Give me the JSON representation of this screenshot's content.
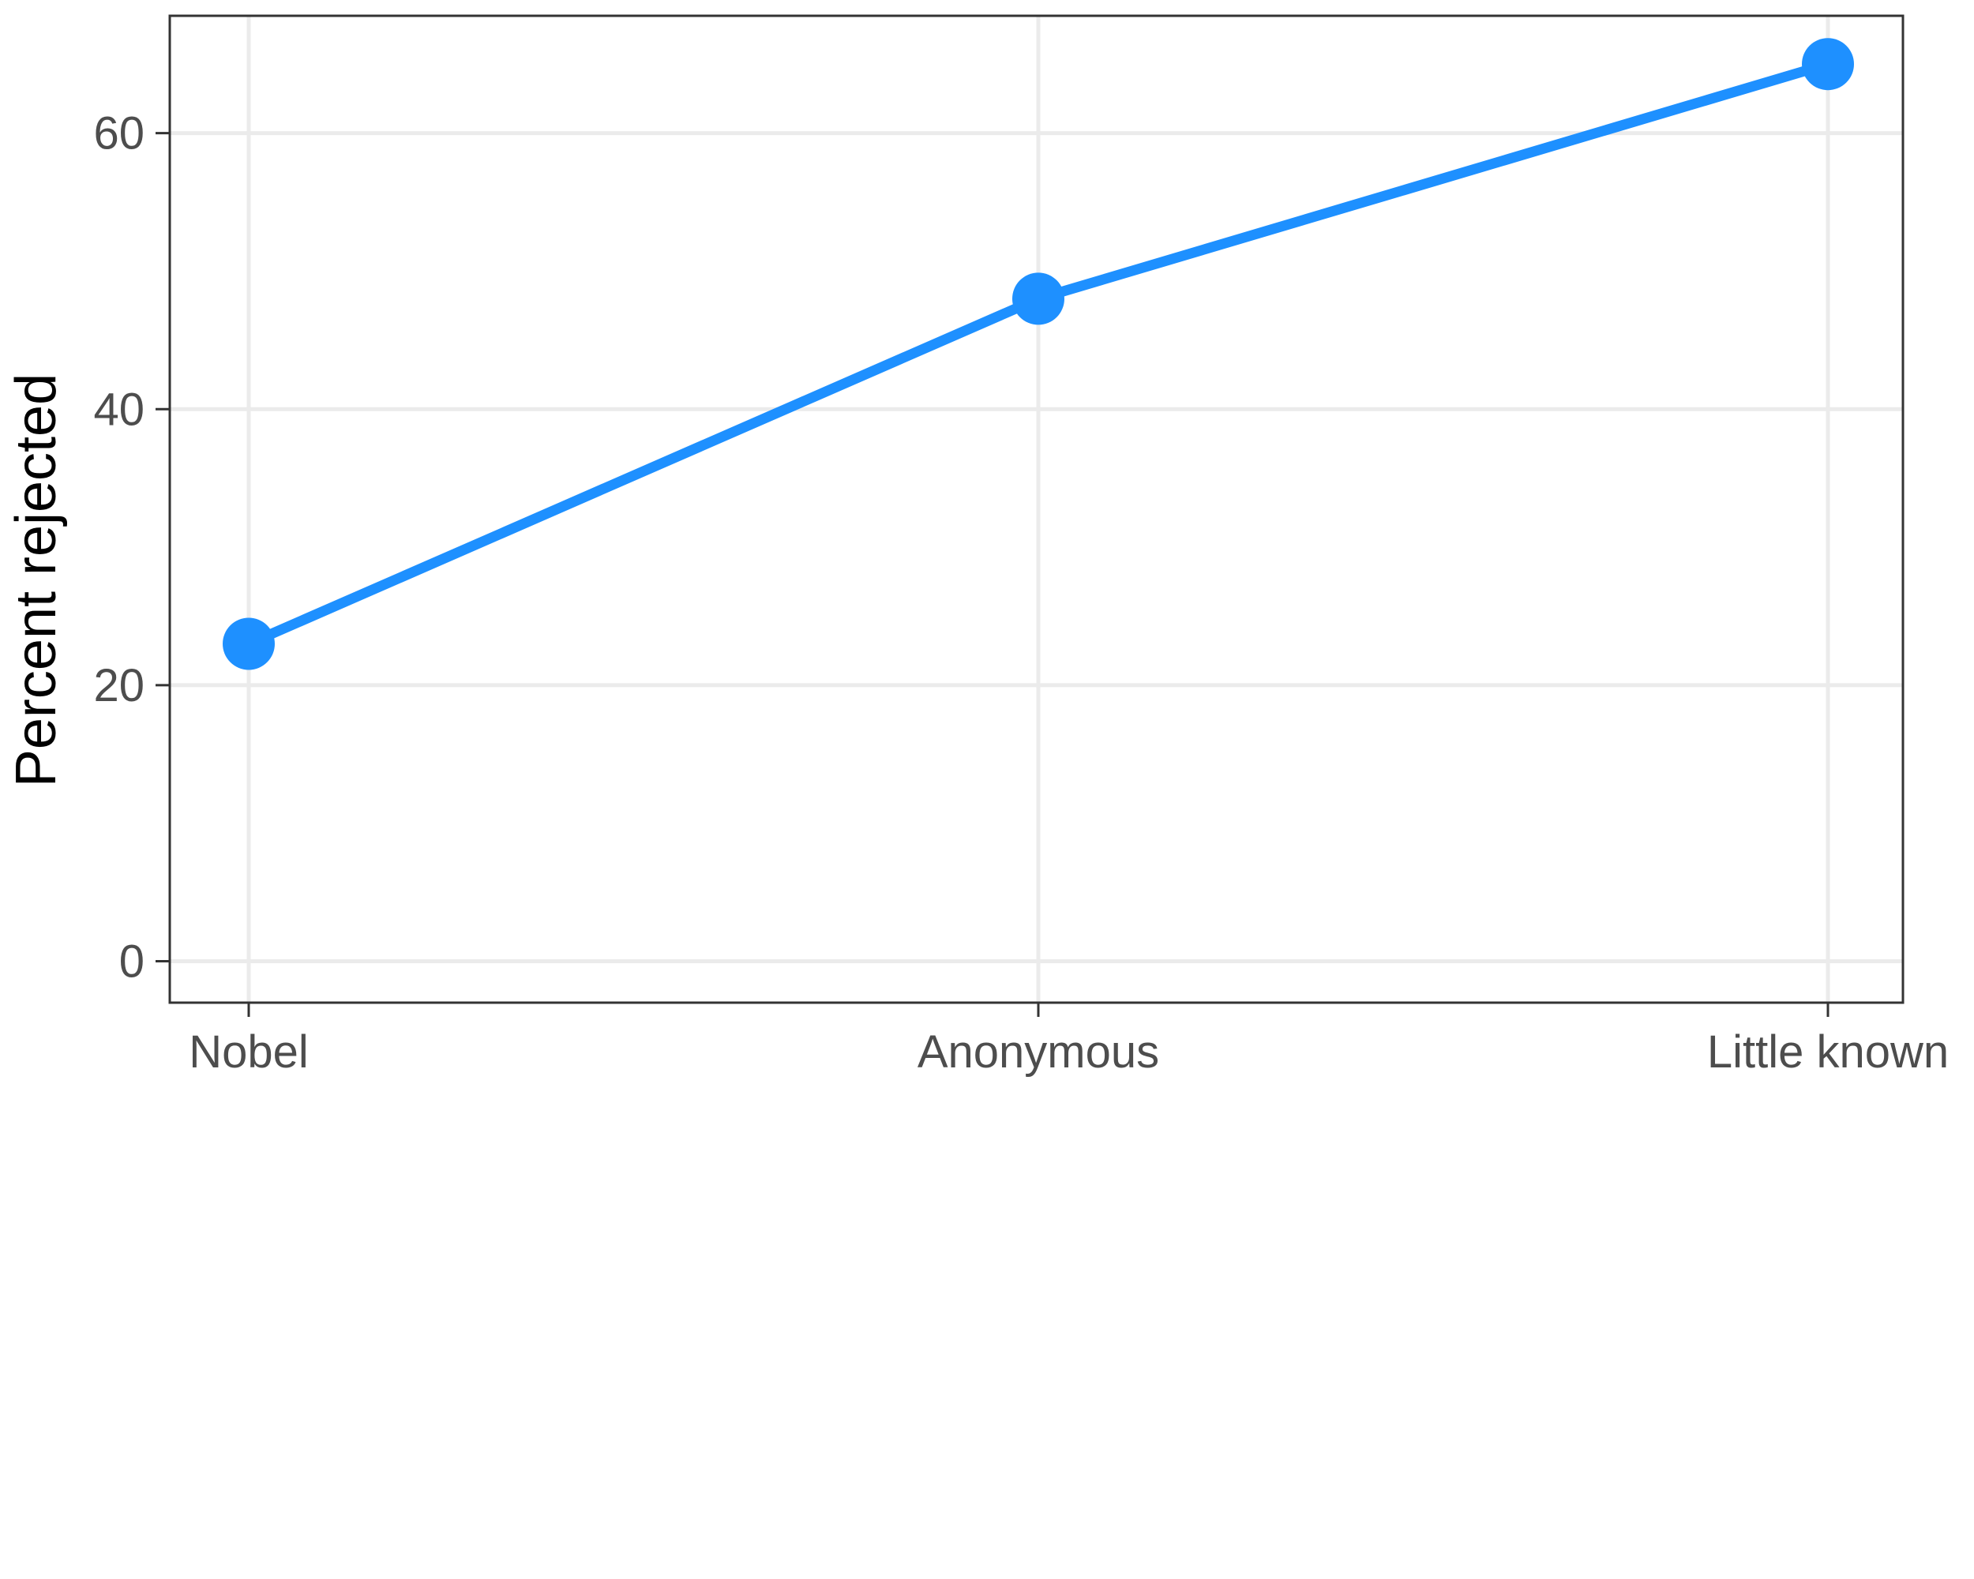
{
  "chart_data": {
    "type": "line",
    "title": "",
    "xlabel": "",
    "ylabel": "Percent rejected",
    "categories": [
      "Nobel",
      "Anonymous",
      "Little known"
    ],
    "series": [
      {
        "values": [
          23,
          48,
          65
        ],
        "color": "#1e90ff"
      }
    ],
    "ylim": [
      -3,
      68.5
    ],
    "yticks": [
      0,
      20,
      40,
      60
    ],
    "grid": true,
    "legend": "none",
    "colors": {
      "line": "#1e90ff",
      "grid": "#ebebeb",
      "panel_border": "#333333",
      "tick_label": "#4d4d4d",
      "axis_title": "#000000"
    }
  }
}
